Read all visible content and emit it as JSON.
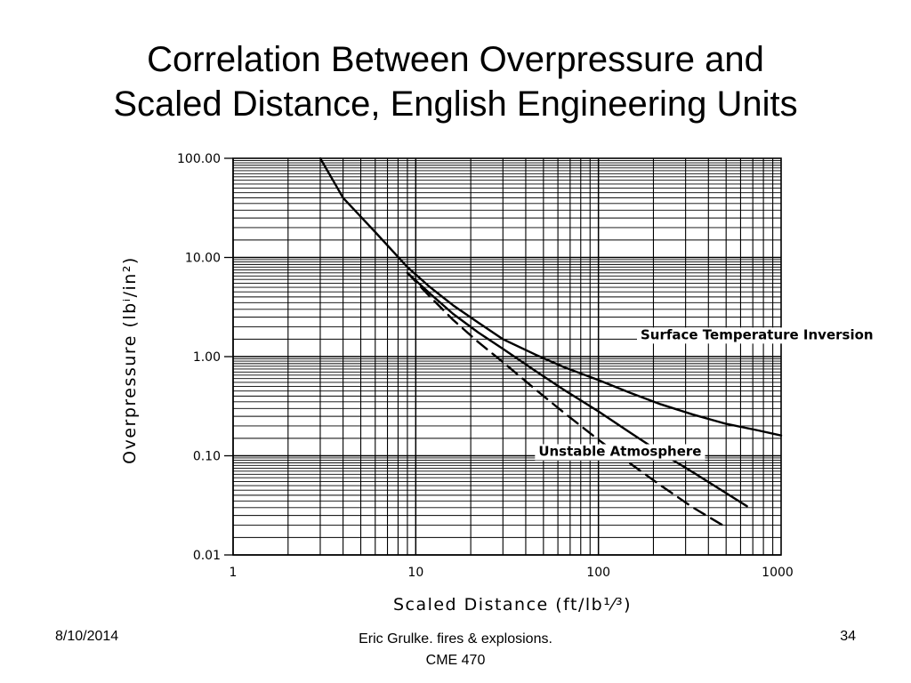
{
  "slide": {
    "title_line1": "Correlation Between Overpressure and",
    "title_line2": "Scaled Distance, English Engineering Units"
  },
  "footer": {
    "date": "8/10/2014",
    "center_line1": "Eric Grulke.  fires & explosions.",
    "center_line2": "CME 470",
    "page": "34"
  },
  "chart_data": {
    "type": "line",
    "title": "",
    "xlabel": "Scaled Distance (ft/lb¹⁄³)",
    "ylabel": "Overpressure (lbⁱ/in²)",
    "xscale": "log",
    "yscale": "log",
    "xlim": [
      1,
      1000
    ],
    "ylim": [
      0.01,
      100
    ],
    "x_tick_labels": [
      "1",
      "10",
      "100",
      "1000"
    ],
    "y_tick_labels": [
      "100.00",
      "10.00",
      "1.00",
      "0.10",
      "0.01"
    ],
    "grid": true,
    "series": [
      {
        "name": "Surface Temperature Inversion",
        "style": "solid",
        "x": [
          3,
          4,
          6,
          9,
          12,
          16,
          22,
          30,
          45,
          65,
          100,
          150,
          220,
          330,
          500,
          750,
          1000
        ],
        "y": [
          100,
          40,
          18,
          8,
          5,
          3.3,
          2.2,
          1.5,
          1.05,
          0.78,
          0.58,
          0.43,
          0.33,
          0.26,
          0.21,
          0.18,
          0.16
        ]
      },
      {
        "name": "Unstable Atmosphere",
        "style": "solid",
        "x": [
          9,
          12,
          16,
          22,
          30,
          45,
          65,
          100,
          150,
          220,
          330,
          500,
          650
        ],
        "y": [
          7,
          4.3,
          2.7,
          1.75,
          1.2,
          0.72,
          0.46,
          0.28,
          0.17,
          0.107,
          0.068,
          0.042,
          0.031
        ]
      },
      {
        "name": "",
        "style": "dashed",
        "x": [
          9,
          12,
          16,
          22,
          30,
          45,
          65,
          100,
          150,
          220,
          330,
          500
        ],
        "y": [
          7,
          4,
          2.35,
          1.4,
          0.88,
          0.47,
          0.27,
          0.145,
          0.083,
          0.05,
          0.03,
          0.019
        ]
      }
    ],
    "annotations": [
      {
        "text": "Surface Temperature Inversion",
        "x": 170,
        "y": 1.5
      },
      {
        "text": "Unstable Atmosphere",
        "x": 47,
        "y": 0.1
      }
    ]
  }
}
